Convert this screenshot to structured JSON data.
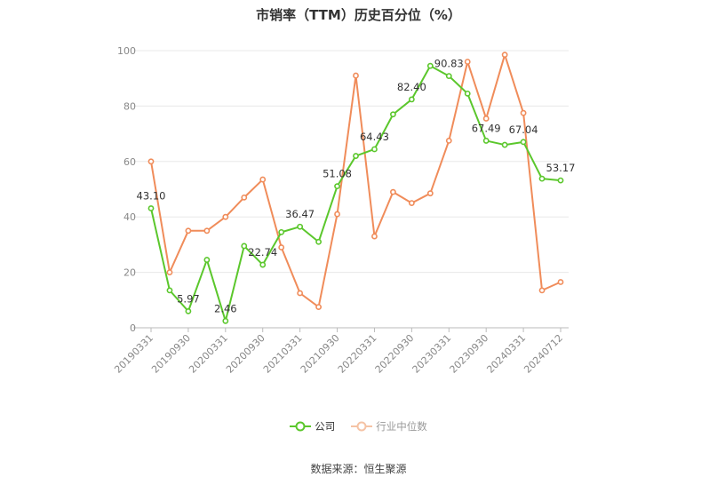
{
  "title": "市销率（TTM）历史百分位（%）",
  "source": "数据来源：恒生聚源",
  "legend": {
    "company": "公司",
    "industry": "行业中位数"
  },
  "colors": {
    "company": "#5bc72c",
    "industry": "#f08c5a",
    "grid": "#e8e8e8",
    "axis": "#bbbbbb"
  },
  "chart_data": {
    "type": "line",
    "title": "市销率（TTM）历史百分位（%）",
    "ylim": [
      0,
      100
    ],
    "yticks": [
      0,
      20,
      40,
      60,
      80,
      100
    ],
    "x": [
      "20190331",
      "20190630",
      "20190930",
      "20191231",
      "20200331",
      "20200630",
      "20200930",
      "20201231",
      "20210331",
      "20210630",
      "20210930",
      "20211231",
      "20220331",
      "20220630",
      "20220930",
      "20221231",
      "20230331",
      "20230630",
      "20230930",
      "20231231",
      "20240331",
      "20240630",
      "20240712"
    ],
    "xtick_labels": [
      "20190331",
      "20190930",
      "20200331",
      "20200930",
      "20210331",
      "20210930",
      "20220331",
      "20220930",
      "20230331",
      "20230930",
      "20240331",
      "20240712"
    ],
    "xtick_indices": [
      0,
      2,
      4,
      6,
      8,
      10,
      12,
      14,
      16,
      18,
      20,
      22
    ],
    "series": [
      {
        "name": "公司",
        "values": [
          43.1,
          13.5,
          5.97,
          24.5,
          2.46,
          29.5,
          22.74,
          34.5,
          36.47,
          31.0,
          51.08,
          62.0,
          64.43,
          77.0,
          82.4,
          94.5,
          90.83,
          84.5,
          67.49,
          66.0,
          67.04,
          53.8,
          53.17
        ],
        "labels": {
          "0": "43.10",
          "2": "5.97",
          "4": "2.46",
          "6": "22.74",
          "8": "36.47",
          "10": "51.08",
          "12": "64.43",
          "14": "82.40",
          "16": "90.83",
          "18": "67.49",
          "20": "67.04",
          "22": "53.17"
        }
      },
      {
        "name": "行业中位数",
        "values": [
          60.0,
          20.0,
          35.0,
          35.0,
          40.0,
          47.0,
          53.5,
          29.0,
          12.5,
          7.5,
          41.0,
          91.0,
          33.0,
          49.0,
          45.0,
          48.5,
          67.5,
          96.0,
          75.5,
          98.5,
          77.5,
          13.5,
          16.5
        ]
      }
    ]
  }
}
